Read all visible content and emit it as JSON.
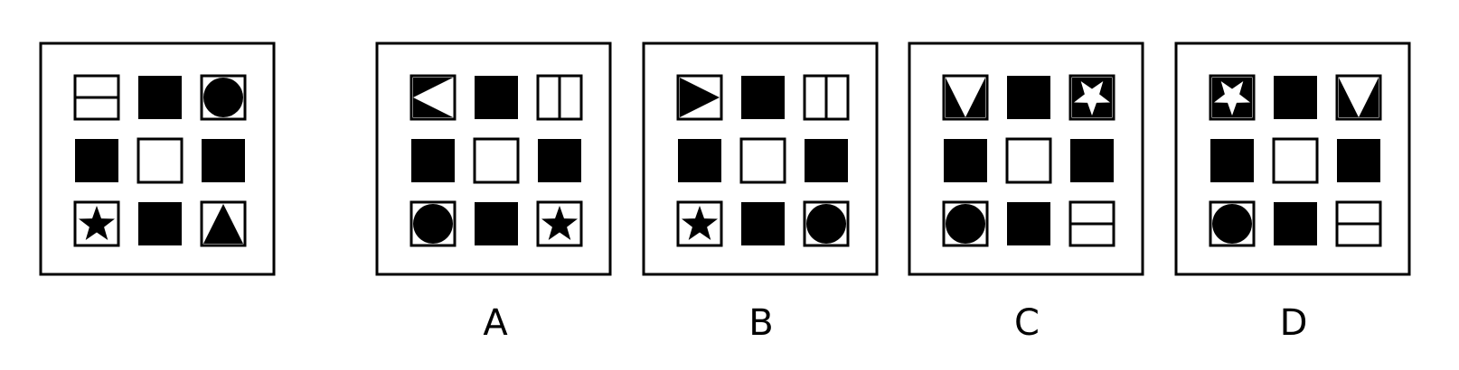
{
  "options": [
    {
      "id": "A",
      "label": "A"
    },
    {
      "id": "B",
      "label": "B"
    },
    {
      "id": "C",
      "label": "C"
    },
    {
      "id": "D",
      "label": "D"
    }
  ],
  "panels": [
    {
      "id": "question",
      "cells": [
        "hsplit",
        "solid",
        "circle",
        "solid",
        "empty",
        "solid",
        "star",
        "solid",
        "tri-up"
      ]
    },
    {
      "id": "A",
      "cells": [
        "tri-left",
        "solid",
        "vsplit",
        "solid",
        "empty",
        "solid",
        "circle",
        "solid",
        "star"
      ]
    },
    {
      "id": "B",
      "cells": [
        "tri-right",
        "solid",
        "vsplit",
        "solid",
        "empty",
        "solid",
        "star",
        "solid",
        "circle"
      ]
    },
    {
      "id": "C",
      "cells": [
        "tri-down",
        "solid",
        "star-inv",
        "solid",
        "empty",
        "solid",
        "circle",
        "solid",
        "hsplit"
      ]
    },
    {
      "id": "D",
      "cells": [
        "star-inv",
        "solid",
        "tri-down",
        "solid",
        "empty",
        "solid",
        "circle",
        "solid",
        "hsplit"
      ]
    }
  ]
}
